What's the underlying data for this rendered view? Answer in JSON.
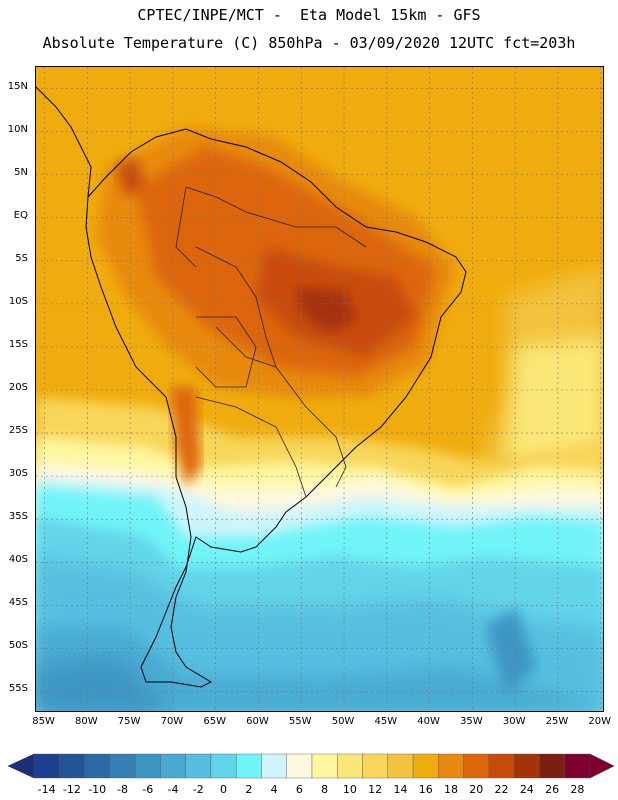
{
  "header": {
    "line1": "CPTEC/INPE/MCT -  Eta Model 15km - GFS",
    "line2": "Absolute Temperature (C) 850hPa - 03/09/2020 12UTC fct=203h"
  },
  "axes": {
    "lat_labels": [
      "15N",
      "10N",
      "5N",
      "EQ",
      "5S",
      "10S",
      "15S",
      "20S",
      "25S",
      "30S",
      "35S",
      "40S",
      "45S",
      "50S",
      "55S"
    ],
    "lat_values": [
      15,
      10,
      5,
      0,
      -5,
      -10,
      -15,
      -20,
      -25,
      -30,
      -35,
      -40,
      -45,
      -50,
      -55
    ],
    "lon_labels": [
      "85W",
      "80W",
      "75W",
      "70W",
      "65W",
      "60W",
      "55W",
      "50W",
      "45W",
      "40W",
      "35W",
      "30W",
      "25W",
      "20W"
    ],
    "lon_values": [
      -85,
      -80,
      -75,
      -70,
      -65,
      -60,
      -55,
      -50,
      -45,
      -40,
      -35,
      -30,
      -25,
      -20
    ],
    "lat_range": [
      -57.5,
      17.5
    ],
    "lon_range": [
      -86,
      -19.5
    ]
  },
  "colorbar": {
    "labels": [
      "-14",
      "-12",
      "-10",
      "-8",
      "-6",
      "-4",
      "-2",
      "0",
      "2",
      "4",
      "6",
      "8",
      "10",
      "12",
      "14",
      "16",
      "18",
      "20",
      "22",
      "24",
      "26",
      "28"
    ],
    "colors": [
      "#1c3f8f",
      "#235496",
      "#2b6aa4",
      "#3580b4",
      "#3c96c4",
      "#48aad2",
      "#56bfdf",
      "#63d5ea",
      "#6ff4f8",
      "#cdf5fb",
      "#fff8e0",
      "#fef7a0",
      "#fbe777",
      "#f8d65a",
      "#f3c33d",
      "#f0ac0e",
      "#e88a10",
      "#dd6608",
      "#c84b08",
      "#a53208",
      "#7a1f10",
      "#7e0031"
    ],
    "under_color": "#1c2f78",
    "over_color": "#7e0031"
  }
}
